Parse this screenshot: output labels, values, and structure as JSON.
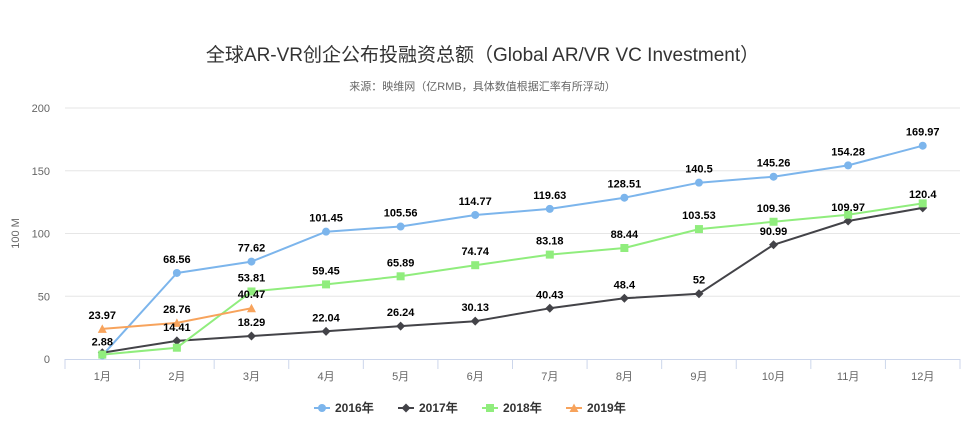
{
  "chart_data": {
    "type": "line",
    "title": "全球AR-VR创企公布投融资总额（Global AR/VR VC Investment）",
    "subtitle": "来源：映维网（亿RMB，具体数值根据汇率有所浮动）",
    "ylabel": "100 M",
    "xlabel": "",
    "categories": [
      "1月",
      "2月",
      "3月",
      "4月",
      "5月",
      "6月",
      "7月",
      "8月",
      "9月",
      "10月",
      "11月",
      "12月"
    ],
    "ylim": [
      0,
      200
    ],
    "yticks": [
      0,
      50,
      100,
      150,
      200
    ],
    "grid": true,
    "legend_position": "bottom",
    "series": [
      {
        "name": "2016年",
        "color": "#7cb5ec",
        "marker": "circle",
        "values": [
          2.88,
          68.56,
          77.62,
          101.45,
          105.56,
          114.77,
          119.63,
          128.51,
          140.5,
          145.26,
          154.28,
          169.97
        ],
        "labels": [
          "2.88",
          "68.56",
          "77.62",
          "101.45",
          "105.56",
          "114.77",
          "119.63",
          "128.51",
          "140.5",
          "145.26",
          "154.28",
          "169.97"
        ]
      },
      {
        "name": "2017年",
        "color": "#434348",
        "marker": "diamond",
        "values": [
          5,
          14.41,
          18.29,
          22.04,
          26.24,
          30.13,
          40.43,
          48.4,
          52,
          90.99,
          109.97,
          120.4
        ],
        "labels": [
          "",
          "14.41",
          "18.29",
          "22.04",
          "26.24",
          "30.13",
          "40.43",
          "48.4",
          "52",
          "90.99",
          "109.97",
          "120.4"
        ]
      },
      {
        "name": "2018年",
        "color": "#90ed7d",
        "marker": "square",
        "values": [
          3.5,
          9,
          53.81,
          59.45,
          65.89,
          74.74,
          83.18,
          88.44,
          103.53,
          109.36,
          115,
          124
        ],
        "labels": [
          "",
          "",
          "53.81",
          "59.45",
          "65.89",
          "74.74",
          "83.18",
          "88.44",
          "103.53",
          "109.36",
          "",
          ""
        ]
      },
      {
        "name": "2019年",
        "color": "#f7a35c",
        "marker": "triangle",
        "values": [
          23.97,
          28.76,
          40.47,
          null,
          null,
          null,
          null,
          null,
          null,
          null,
          null,
          null
        ],
        "labels": [
          "23.97",
          "28.76",
          "40.47",
          "",
          "",
          "",
          "",
          "",
          "",
          "",
          "",
          ""
        ]
      }
    ]
  }
}
